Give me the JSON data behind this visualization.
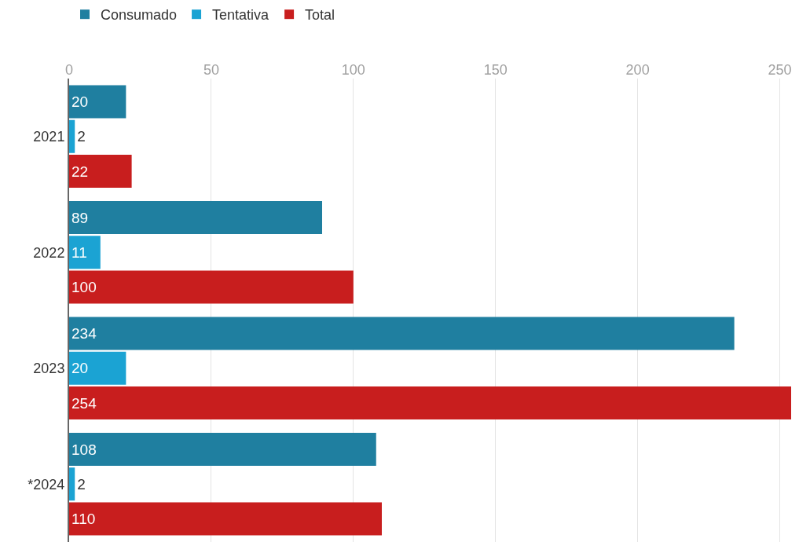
{
  "chart_data": {
    "type": "bar",
    "orientation": "horizontal",
    "categories": [
      "2021",
      "2022",
      "2023",
      "*2024"
    ],
    "series": [
      {
        "name": "Consumado",
        "color": "#1f7fa0",
        "values": [
          20,
          89,
          234,
          108
        ]
      },
      {
        "name": "Tentativa",
        "color": "#1ba3d3",
        "values": [
          2,
          11,
          20,
          2
        ]
      },
      {
        "name": "Total",
        "color": "#c81e1e",
        "values": [
          22,
          100,
          254,
          110
        ]
      }
    ],
    "xlim": [
      0,
      254
    ],
    "xticks": [
      0,
      50,
      100,
      150,
      200,
      250
    ],
    "grid": "x",
    "legend": "top left",
    "data_labels": true
  }
}
